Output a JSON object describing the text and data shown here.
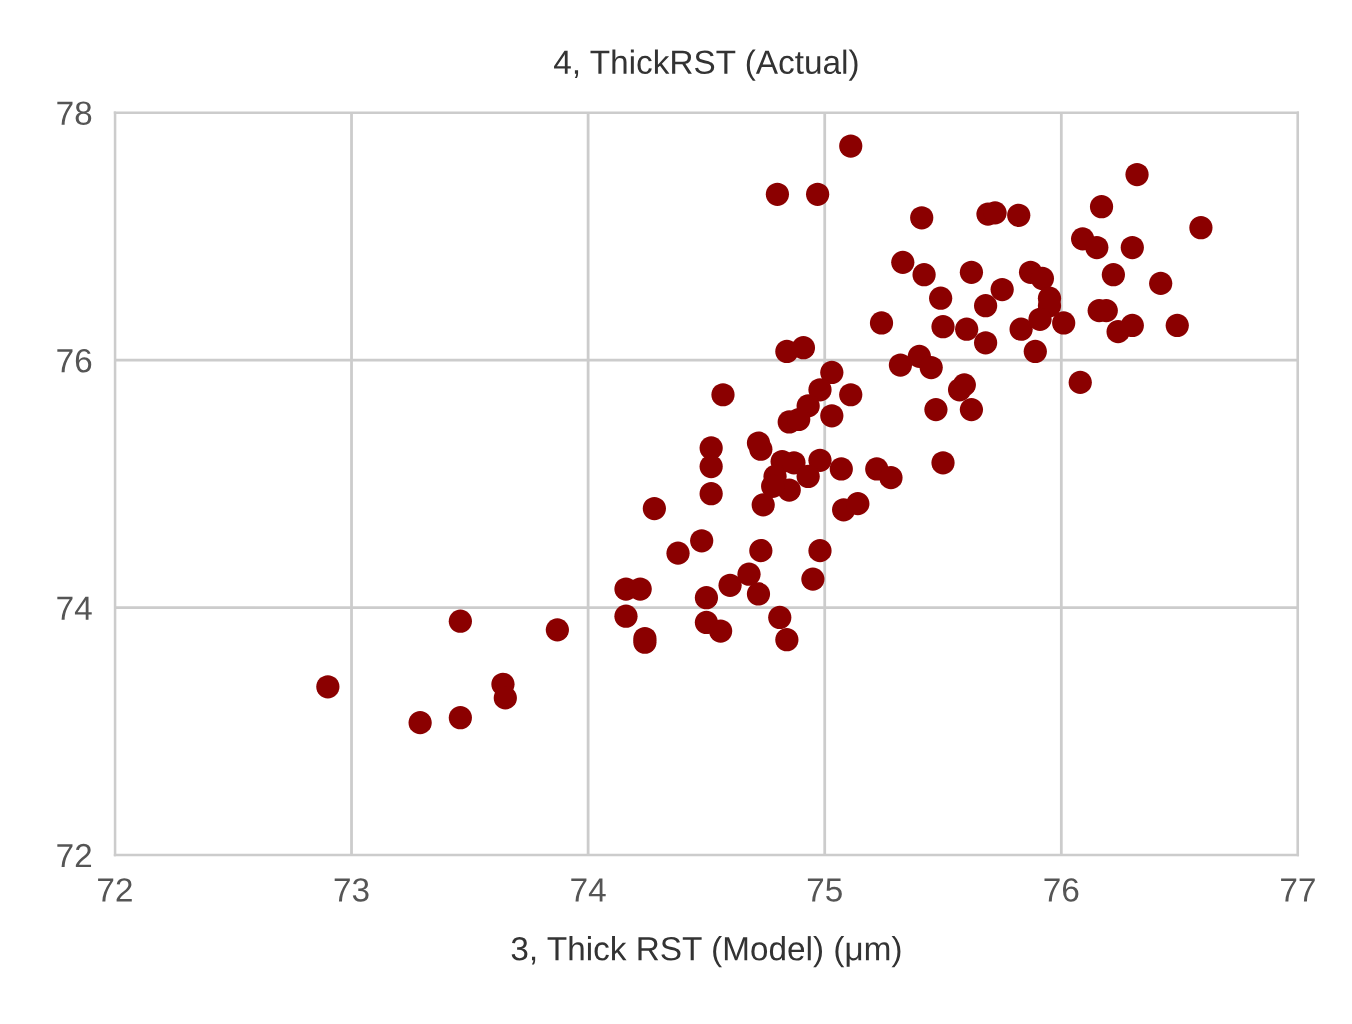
{
  "chart_data": {
    "type": "scatter",
    "title": "4, ThickRST (Actual)",
    "xlabel": "3, Thick RST (Model) (μm)",
    "xlim": [
      72,
      77
    ],
    "xticks": [
      72,
      73,
      74,
      75,
      76,
      77
    ],
    "ylim": [
      72,
      78
    ],
    "yticks": [
      72,
      74,
      76,
      78
    ],
    "grid": true,
    "marker": "circle",
    "series": [
      {
        "color": "#8b0000",
        "x": [
          72.9,
          73.29,
          73.46,
          73.46,
          73.64,
          73.65,
          73.87,
          74.16,
          74.22,
          74.16,
          74.24,
          74.24,
          74.28,
          74.38,
          74.48,
          74.5,
          74.5,
          74.56,
          74.6,
          74.52,
          74.52,
          74.52,
          74.57,
          75.11,
          74.8,
          74.97,
          75.41,
          75.69,
          75.72,
          75.82,
          76.32,
          76.17,
          76.59,
          76.09,
          76.15,
          76.3,
          76.22,
          76.42,
          75.33,
          75.42,
          75.62,
          75.87,
          75.92,
          75.49,
          75.75,
          75.95,
          75.95,
          75.68,
          75.24,
          75.5,
          75.6,
          75.83,
          75.91,
          76.01,
          76.16,
          76.19,
          76.24,
          76.3,
          76.49,
          75.68,
          75.89,
          76.08,
          74.84,
          74.91,
          75.32,
          75.4,
          75.45,
          75.03,
          75.11,
          75.57,
          75.59,
          75.47,
          75.62,
          74.98,
          74.93,
          74.85,
          74.89,
          75.03,
          74.72,
          74.73,
          75.5,
          74.82,
          74.87,
          74.98,
          75.07,
          75.22,
          75.28,
          74.79,
          74.93,
          74.85,
          74.78,
          74.74,
          75.08,
          75.14,
          74.73,
          74.98,
          74.68,
          74.72,
          74.95,
          74.81,
          74.84
        ],
        "values": [
          73.36,
          73.07,
          73.11,
          73.89,
          73.38,
          73.27,
          73.82,
          74.15,
          74.15,
          73.93,
          73.75,
          73.72,
          74.8,
          74.44,
          74.54,
          74.08,
          73.88,
          73.81,
          74.18,
          75.29,
          75.14,
          74.92,
          75.72,
          77.73,
          77.34,
          77.34,
          77.15,
          77.18,
          77.19,
          77.17,
          77.5,
          77.24,
          77.07,
          76.98,
          76.91,
          76.91,
          76.69,
          76.62,
          76.79,
          76.69,
          76.71,
          76.71,
          76.66,
          76.5,
          76.57,
          76.5,
          76.44,
          76.44,
          76.3,
          76.27,
          76.25,
          76.25,
          76.33,
          76.3,
          76.4,
          76.4,
          76.23,
          76.28,
          76.28,
          76.14,
          76.07,
          75.82,
          76.07,
          76.1,
          75.96,
          76.03,
          75.94,
          75.9,
          75.72,
          75.76,
          75.8,
          75.6,
          75.6,
          75.76,
          75.63,
          75.5,
          75.52,
          75.55,
          75.33,
          75.28,
          75.17,
          75.18,
          75.17,
          75.19,
          75.12,
          75.12,
          75.05,
          75.06,
          75.06,
          74.95,
          74.98,
          74.83,
          74.79,
          74.84,
          74.46,
          74.46,
          74.27,
          74.11,
          74.23,
          73.92,
          73.74
        ]
      }
    ]
  }
}
